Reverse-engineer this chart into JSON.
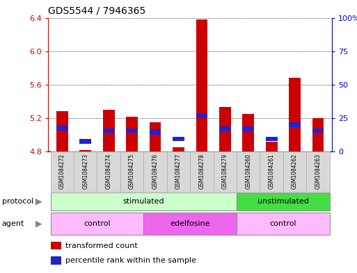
{
  "title": "GDS5544 / 7946365",
  "samples": [
    "GSM1084272",
    "GSM1084273",
    "GSM1084274",
    "GSM1084275",
    "GSM1084276",
    "GSM1084277",
    "GSM1084278",
    "GSM1084279",
    "GSM1084260",
    "GSM1084261",
    "GSM1084262",
    "GSM1084263"
  ],
  "red_values": [
    5.28,
    4.82,
    5.3,
    5.22,
    5.15,
    4.85,
    6.38,
    5.33,
    5.25,
    4.92,
    5.68,
    5.2
  ],
  "blue_values": [
    5.08,
    4.92,
    5.05,
    5.05,
    5.03,
    4.95,
    5.23,
    5.07,
    5.07,
    4.95,
    5.12,
    5.05
  ],
  "ylim_left": [
    4.8,
    6.4
  ],
  "ylim_right": [
    0,
    100
  ],
  "yticks_left": [
    4.8,
    5.2,
    5.6,
    6.0,
    6.4
  ],
  "yticks_right": [
    0,
    25,
    50,
    75,
    100
  ],
  "ytick_labels_right": [
    "0",
    "25",
    "50",
    "75",
    "100%"
  ],
  "bar_bottom": 4.8,
  "bar_width": 0.5,
  "red_color": "#cc0000",
  "blue_color": "#2222cc",
  "protocol_groups": [
    {
      "label": "stimulated",
      "start": 0,
      "end": 7,
      "color": "#ccffcc"
    },
    {
      "label": "unstimulated",
      "start": 8,
      "end": 11,
      "color": "#44dd44"
    }
  ],
  "agent_groups": [
    {
      "label": "control",
      "start": 0,
      "end": 3,
      "color": "#ffbbff"
    },
    {
      "label": "edelfosine",
      "start": 4,
      "end": 7,
      "color": "#ee66ee"
    },
    {
      "label": "control",
      "start": 8,
      "end": 11,
      "color": "#ffbbff"
    }
  ],
  "legend_red": "transformed count",
  "legend_blue": "percentile rank within the sample",
  "title_fontsize": 10,
  "axis_color_left": "#cc0000",
  "axis_color_right": "#0000cc"
}
